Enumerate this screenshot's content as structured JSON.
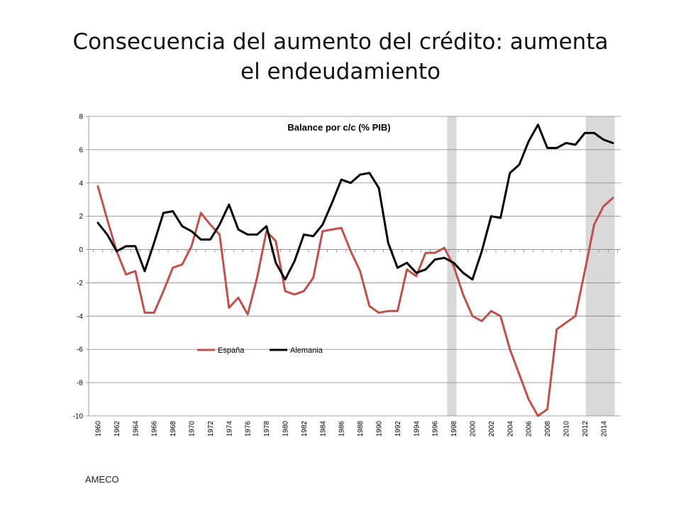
{
  "slide": {
    "title_line1": "Consecuencia del aumento del crédito: aumenta",
    "title_line2": "el endeudamiento",
    "source": "AMECO"
  },
  "chart_data": {
    "type": "line",
    "title": "Balance por c/c (% PIB)",
    "ylim": [
      -10,
      8
    ],
    "yticks": [
      -10,
      -8,
      -6,
      -4,
      -2,
      0,
      2,
      4,
      6,
      8
    ],
    "xlim": [
      1960,
      2015
    ],
    "xticks": [
      1960,
      1962,
      1964,
      1966,
      1968,
      1970,
      1972,
      1974,
      1976,
      1978,
      1980,
      1982,
      1984,
      1986,
      1988,
      1990,
      1992,
      1994,
      1996,
      1998,
      2000,
      2002,
      2004,
      2006,
      2008,
      2010,
      2012,
      2014
    ],
    "grid": "horizontal",
    "legend": "inside-center",
    "shaded_periods": [
      [
        1997.3,
        1998.3
      ],
      [
        2012.1,
        2015.2
      ]
    ],
    "x": [
      1960,
      1961,
      1962,
      1963,
      1964,
      1965,
      1966,
      1967,
      1968,
      1969,
      1970,
      1971,
      1972,
      1973,
      1974,
      1975,
      1976,
      1977,
      1978,
      1979,
      1980,
      1981,
      1982,
      1983,
      1984,
      1985,
      1986,
      1987,
      1988,
      1989,
      1990,
      1991,
      1992,
      1993,
      1994,
      1995,
      1996,
      1997,
      1998,
      1999,
      2000,
      2001,
      2002,
      2003,
      2004,
      2005,
      2006,
      2007,
      2008,
      2009,
      2010,
      2011,
      2012,
      2013,
      2014,
      2015
    ],
    "series": [
      {
        "name": "España",
        "color": "#c0504d",
        "values": [
          3.8,
          1.8,
          -0.1,
          -1.5,
          -1.3,
          -3.8,
          -3.8,
          -2.5,
          -1.1,
          -0.9,
          0.2,
          2.2,
          1.5,
          0.9,
          -3.5,
          -2.9,
          -3.9,
          -1.7,
          1.1,
          0.5,
          -2.5,
          -2.7,
          -2.5,
          -1.7,
          1.1,
          1.2,
          1.3,
          -0.1,
          -1.3,
          -3.4,
          -3.8,
          -3.7,
          -3.7,
          -1.2,
          -1.6,
          -0.2,
          -0.2,
          0.1,
          -1.0,
          -2.7,
          -4.0,
          -4.3,
          -3.7,
          -4.0,
          -6.0,
          -7.5,
          -9.0,
          -10.0,
          -9.6,
          -4.8,
          -4.4,
          -4.0,
          -1.3,
          1.5,
          2.6,
          3.1
        ]
      },
      {
        "name": "Alemania",
        "color": "#000000",
        "values": [
          1.6,
          0.9,
          -0.1,
          0.2,
          0.2,
          -1.3,
          0.4,
          2.2,
          2.3,
          1.4,
          1.1,
          0.6,
          0.6,
          1.5,
          2.7,
          1.2,
          0.9,
          0.9,
          1.4,
          -0.8,
          -1.8,
          -0.7,
          0.9,
          0.8,
          1.5,
          2.8,
          4.2,
          4.0,
          4.5,
          4.6,
          3.7,
          0.4,
          -1.1,
          -0.8,
          -1.4,
          -1.2,
          -0.6,
          -0.5,
          -0.8,
          -1.4,
          -1.8,
          -0.1,
          2.0,
          1.9,
          4.6,
          5.1,
          6.5,
          7.5,
          6.1,
          6.1,
          6.4,
          6.3,
          7.0,
          7.0,
          6.6,
          6.4
        ]
      }
    ]
  }
}
